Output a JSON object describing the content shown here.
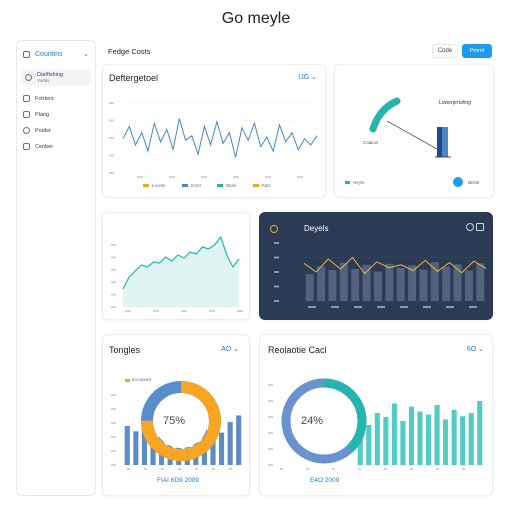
{
  "app": {
    "title": "Go meyle"
  },
  "sidebar": {
    "header": "Countins",
    "items": [
      {
        "label": "Darlfishing",
        "sub": "Yorbis"
      },
      {
        "label": "Folrters"
      },
      {
        "label": "Plang"
      },
      {
        "label": "Podlet"
      },
      {
        "label": "Cenber"
      }
    ]
  },
  "topbar": {
    "title": "Fedge Costs",
    "code_label": "Code",
    "primary_label": "Pmmt"
  },
  "card1": {
    "title": "Deftergetoel",
    "ctrl": "IJG",
    "legend": [
      "Loomk",
      "Smbr",
      "Bbnk",
      "Ratn"
    ]
  },
  "card2": {
    "label": "Lowerprrurling",
    "sublabel": "Coalcel",
    "foot_label": "Neyle",
    "foot_btn": "Bnnsl"
  },
  "card4": {
    "title": "Deyels"
  },
  "card5": {
    "title": "Tongles",
    "ctrl": "AO",
    "legend": "Eocuteed",
    "donut_value": "75%",
    "footer": "FIAI 6D9 2009"
  },
  "card6": {
    "title": "Reolaotie Cacl",
    "ctrl": "6O",
    "donut_value": "24%",
    "footer": "E4O 2009"
  },
  "colors": {
    "accent": "#1e9bf0",
    "line_blue": "#4a86c5",
    "teal": "#22b6ae",
    "orange": "#f6a623",
    "dark": "#2b3a55"
  },
  "chart_data": [
    {
      "type": "line",
      "series": [
        {
          "values": [
            62,
            70,
            58,
            66,
            54,
            72,
            60,
            68,
            55,
            75,
            61,
            64,
            52,
            70,
            58,
            73,
            59,
            66,
            50,
            69,
            61,
            72,
            57,
            63,
            54,
            71,
            60,
            66,
            55,
            62,
            58,
            64
          ]
        }
      ]
    },
    {
      "type": "area",
      "series": [
        {
          "values": [
            18,
            30,
            36,
            42,
            40,
            45,
            44,
            50,
            46,
            52,
            49,
            55,
            53,
            60,
            58,
            62,
            70,
            52,
            40,
            48
          ]
        }
      ]
    },
    {
      "type": "bar",
      "values": [
        40,
        55,
        48,
        62,
        50,
        58,
        45,
        60,
        52,
        57,
        49,
        63,
        54,
        59,
        47,
        61
      ],
      "series": [
        {
          "values": [
            72,
            60,
            78,
            64,
            80,
            58,
            74,
            66,
            70,
            62,
            76,
            61,
            73,
            59,
            75,
            65
          ]
        }
      ]
    },
    {
      "type": "bar",
      "values": [
        50,
        42,
        65,
        30,
        55,
        70,
        45,
        60,
        58,
        48,
        62,
        40,
        56,
        66
      ],
      "donut": 75
    },
    {
      "type": "bar",
      "values": [
        30,
        45,
        60,
        55,
        72,
        50,
        68,
        62,
        58,
        70,
        52,
        64,
        56,
        60,
        75
      ],
      "donut": 24
    }
  ]
}
